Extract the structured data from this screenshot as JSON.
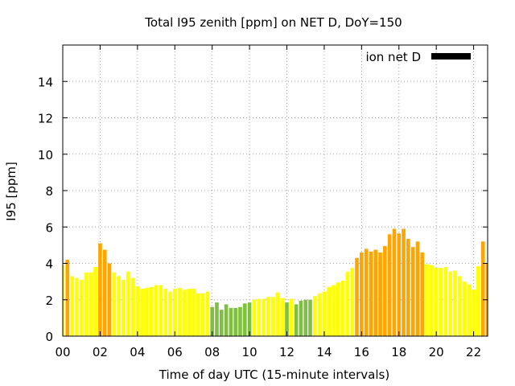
{
  "chart_data": {
    "type": "bar",
    "title": "Total I95 zenith [ppm] on NET D, DoY=150",
    "xlabel": "Time of day UTC (15-minute intervals)",
    "ylabel": "I95 [ppm]",
    "xlim": [
      0,
      22.75
    ],
    "ylim": [
      0,
      16
    ],
    "x_ticks": [
      "00",
      "02",
      "04",
      "06",
      "08",
      "10",
      "12",
      "14",
      "16",
      "18",
      "20",
      "22"
    ],
    "y_ticks": [
      "0",
      "2",
      "4",
      "6",
      "8",
      "10",
      "12",
      "14"
    ],
    "grid": true,
    "legend": {
      "label": "ion net D",
      "color": "#000000",
      "placement": "top-right"
    },
    "colors": {
      "yellow": "#ffff00",
      "orange": "#ffa500",
      "green": "#80c040"
    },
    "bar_x_start": 0,
    "bar_x_step": 0.25,
    "values": [
      3.9,
      4.2,
      3.3,
      3.2,
      3.1,
      3.5,
      3.5,
      3.8,
      5.1,
      4.75,
      4.0,
      3.5,
      3.3,
      3.1,
      3.55,
      3.2,
      2.75,
      2.6,
      2.65,
      2.7,
      2.8,
      2.8,
      2.6,
      2.45,
      2.6,
      2.65,
      2.55,
      2.6,
      2.6,
      2.35,
      2.35,
      2.45,
      1.6,
      1.85,
      1.45,
      1.75,
      1.55,
      1.55,
      1.6,
      1.8,
      1.85,
      2.0,
      2.05,
      2.05,
      2.15,
      2.15,
      2.4,
      2.1,
      1.85,
      2.05,
      1.75,
      1.95,
      2.0,
      2.0,
      2.2,
      2.35,
      2.45,
      2.7,
      2.8,
      2.95,
      3.05,
      3.55,
      3.75,
      4.3,
      4.6,
      4.8,
      4.65,
      4.75,
      4.6,
      4.95,
      5.6,
      5.9,
      5.65,
      5.9,
      5.35,
      4.9,
      5.2,
      4.6,
      3.95,
      3.9,
      3.75,
      3.75,
      3.8,
      3.55,
      3.6,
      3.3,
      3.0,
      2.85,
      2.55,
      3.85,
      5.2,
      4.0
    ],
    "bar_colors": [
      "yellow",
      "orange",
      "yellow",
      "yellow",
      "yellow",
      "yellow",
      "yellow",
      "yellow",
      "orange",
      "orange",
      "orange",
      "yellow",
      "yellow",
      "yellow",
      "yellow",
      "yellow",
      "yellow",
      "yellow",
      "yellow",
      "yellow",
      "yellow",
      "yellow",
      "yellow",
      "yellow",
      "yellow",
      "yellow",
      "yellow",
      "yellow",
      "yellow",
      "yellow",
      "yellow",
      "yellow",
      "green",
      "green",
      "green",
      "green",
      "green",
      "green",
      "green",
      "green",
      "green",
      "yellow",
      "yellow",
      "yellow",
      "yellow",
      "yellow",
      "yellow",
      "yellow",
      "green",
      "yellow",
      "green",
      "green",
      "green",
      "green",
      "yellow",
      "yellow",
      "yellow",
      "yellow",
      "yellow",
      "yellow",
      "yellow",
      "yellow",
      "yellow",
      "orange",
      "orange",
      "orange",
      "orange",
      "orange",
      "orange",
      "orange",
      "orange",
      "orange",
      "orange",
      "orange",
      "orange",
      "orange",
      "orange",
      "orange",
      "yellow",
      "yellow",
      "yellow",
      "yellow",
      "yellow",
      "yellow",
      "yellow",
      "yellow",
      "yellow",
      "yellow",
      "yellow",
      "yellow",
      "orange",
      "orange"
    ]
  }
}
